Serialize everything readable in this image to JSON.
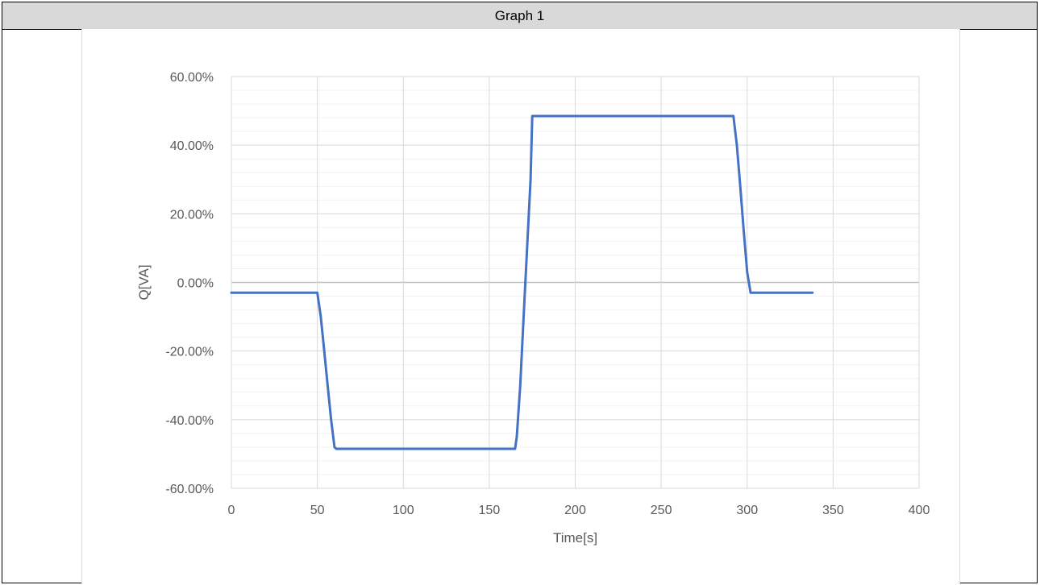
{
  "header": {
    "title": "Graph 1"
  },
  "chart_data": {
    "type": "line",
    "title": "",
    "xlabel": "Time[s]",
    "ylabel": "Q[VA]",
    "xlim": [
      0,
      400
    ],
    "ylim": [
      -60,
      60
    ],
    "x_ticks": [
      0,
      50,
      100,
      150,
      200,
      250,
      300,
      350,
      400
    ],
    "y_ticks": [
      60,
      40,
      20,
      0,
      -20,
      -40,
      -60
    ],
    "y_tick_labels": [
      "60.00%",
      "40.00%",
      "20.00%",
      "0.00%",
      "-20.00%",
      "-40.00%",
      "-60.00%"
    ],
    "x_tick_labels": [
      "0",
      "50",
      "100",
      "150",
      "200",
      "250",
      "300",
      "350",
      "400"
    ],
    "grid": {
      "major": true,
      "minor_horizontal": true
    },
    "series": [
      {
        "color": "#4472c4",
        "x": [
          0,
          50,
          52,
          54,
          56,
          58,
          60,
          61,
          165,
          166,
          168,
          170,
          172,
          174,
          175,
          292,
          294,
          296,
          298,
          300,
          301,
          302,
          338
        ],
        "y": [
          -3,
          -3,
          -10,
          -20,
          -30,
          -40,
          -48,
          -48.5,
          -48.5,
          -45,
          -30,
          -10,
          10,
          30,
          48.5,
          48.5,
          40,
          28,
          15,
          3,
          0,
          -3,
          -3
        ]
      }
    ],
    "colors": {
      "gridline": "#d9d9d9",
      "minor_gridline": "#f2f2f2",
      "zero_line": "#bfbfbf"
    }
  }
}
